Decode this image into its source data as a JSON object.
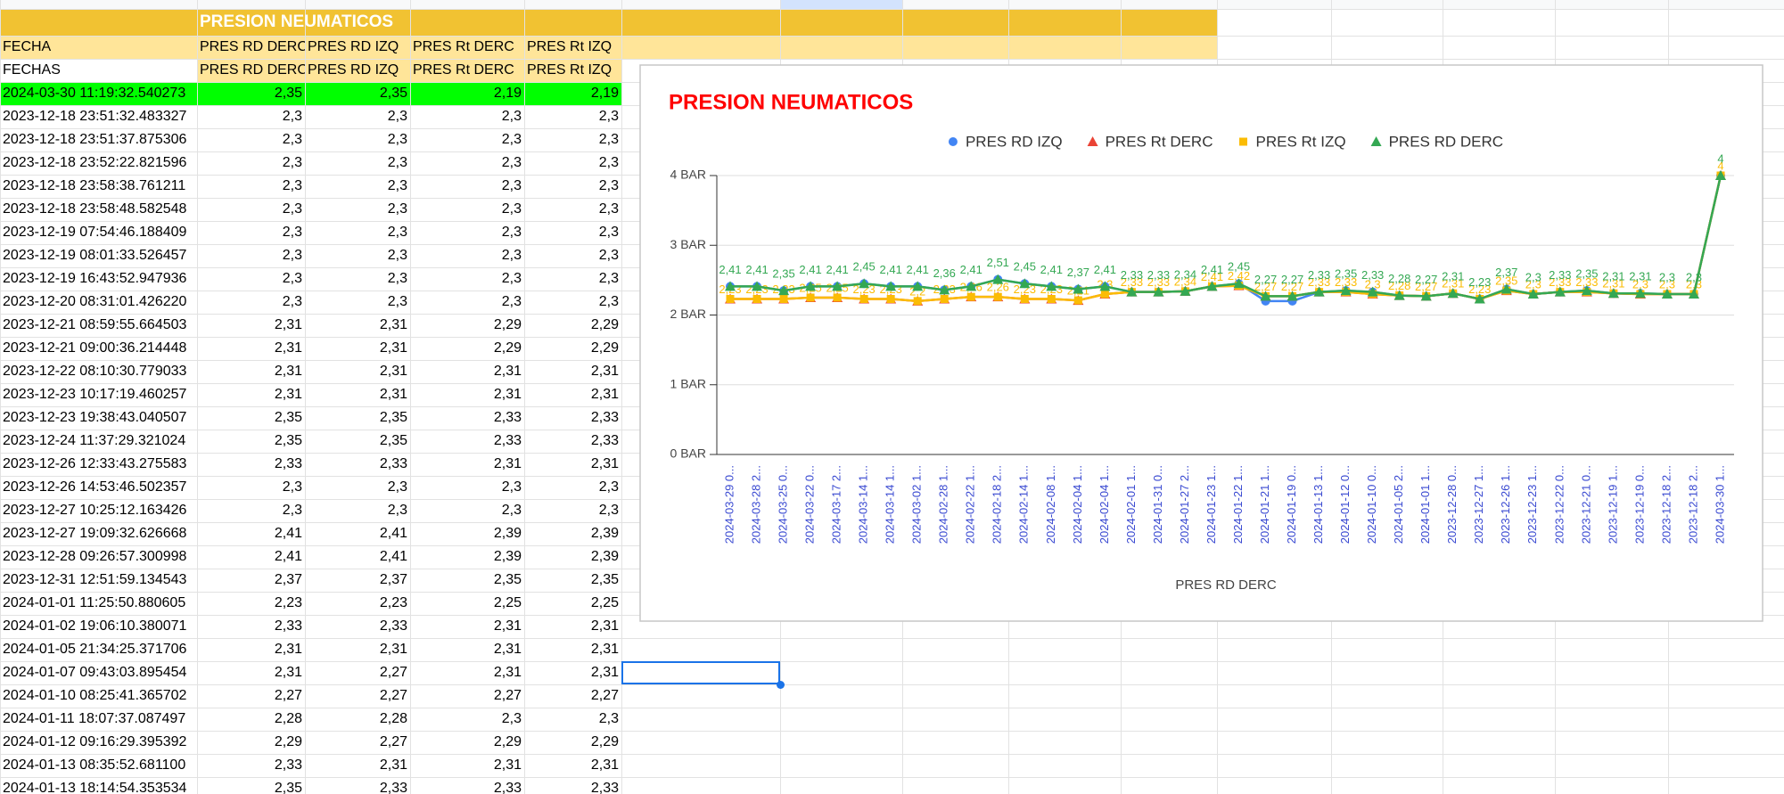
{
  "sheet": {
    "title": "PRESION NEUMATICOS",
    "header": [
      "FECHA",
      "PRES RD DERC",
      "PRES RD IZQ",
      "PRES Rt DERC",
      "PRES Rt IZQ"
    ],
    "subheader": [
      "FECHAS",
      "PRES RD DERC",
      "PRES RD IZQ",
      "PRES Rt DERC",
      "PRES Rt IZQ"
    ],
    "rows": [
      [
        "2024-03-30 11:19:32.540273",
        "2,35",
        "2,35",
        "2,19",
        "2,19"
      ],
      [
        "2023-12-18 23:51:32.483327",
        "2,3",
        "2,3",
        "2,3",
        "2,3"
      ],
      [
        "2023-12-18 23:51:37.875306",
        "2,3",
        "2,3",
        "2,3",
        "2,3"
      ],
      [
        "2023-12-18 23:52:22.821596",
        "2,3",
        "2,3",
        "2,3",
        "2,3"
      ],
      [
        "2023-12-18 23:58:38.761211",
        "2,3",
        "2,3",
        "2,3",
        "2,3"
      ],
      [
        "2023-12-18 23:58:48.582548",
        "2,3",
        "2,3",
        "2,3",
        "2,3"
      ],
      [
        "2023-12-19 07:54:46.188409",
        "2,3",
        "2,3",
        "2,3",
        "2,3"
      ],
      [
        "2023-12-19 08:01:33.526457",
        "2,3",
        "2,3",
        "2,3",
        "2,3"
      ],
      [
        "2023-12-19 16:43:52.947936",
        "2,3",
        "2,3",
        "2,3",
        "2,3"
      ],
      [
        "2023-12-20 08:31:01.426220",
        "2,3",
        "2,3",
        "2,3",
        "2,3"
      ],
      [
        "2023-12-21 08:59:55.664503",
        "2,31",
        "2,31",
        "2,29",
        "2,29"
      ],
      [
        "2023-12-21 09:00:36.214448",
        "2,31",
        "2,31",
        "2,29",
        "2,29"
      ],
      [
        "2023-12-22 08:10:30.779033",
        "2,31",
        "2,31",
        "2,31",
        "2,31"
      ],
      [
        "2023-12-23 10:17:19.460257",
        "2,31",
        "2,31",
        "2,31",
        "2,31"
      ],
      [
        "2023-12-23 19:38:43.040507",
        "2,35",
        "2,35",
        "2,33",
        "2,33"
      ],
      [
        "2023-12-24 11:37:29.321024",
        "2,35",
        "2,35",
        "2,33",
        "2,33"
      ],
      [
        "2023-12-26 12:33:43.275583",
        "2,33",
        "2,33",
        "2,31",
        "2,31"
      ],
      [
        "2023-12-26 14:53:46.502357",
        "2,3",
        "2,3",
        "2,3",
        "2,3"
      ],
      [
        "2023-12-27 10:25:12.163426",
        "2,3",
        "2,3",
        "2,3",
        "2,3"
      ],
      [
        "2023-12-27 19:09:32.626668",
        "2,41",
        "2,41",
        "2,39",
        "2,39"
      ],
      [
        "2023-12-28 09:26:57.300998",
        "2,41",
        "2,41",
        "2,39",
        "2,39"
      ],
      [
        "2023-12-31 12:51:59.134543",
        "2,37",
        "2,37",
        "2,35",
        "2,35"
      ],
      [
        "2024-01-01 11:25:50.880605",
        "2,23",
        "2,23",
        "2,25",
        "2,25"
      ],
      [
        "2024-01-02 19:06:10.380071",
        "2,33",
        "2,33",
        "2,31",
        "2,31"
      ],
      [
        "2024-01-05 21:34:25.371706",
        "2,31",
        "2,31",
        "2,31",
        "2,31"
      ],
      [
        "2024-01-07 09:43:03.895454",
        "2,31",
        "2,27",
        "2,31",
        "2,31"
      ],
      [
        "2024-01-10 08:25:41.365702",
        "2,27",
        "2,27",
        "2,27",
        "2,27"
      ],
      [
        "2024-01-11 18:07:37.087497",
        "2,28",
        "2,28",
        "2,3",
        "2,3"
      ],
      [
        "2024-01-12 09:16:29.395392",
        "2,29",
        "2,27",
        "2,29",
        "2,29"
      ],
      [
        "2024-01-13 08:35:52.681100",
        "2,33",
        "2,31",
        "2,31",
        "2,31"
      ],
      [
        "2024-01-13 18:14:54.353534",
        "2,35",
        "2,33",
        "2,33",
        "2,33"
      ]
    ]
  },
  "chart_data": {
    "type": "line",
    "title": "PRESION NEUMATICOS",
    "x_label": "PRES RD DERC",
    "legend": "top",
    "grid": true,
    "categories": [
      "2024-03-29 0...",
      "2024-03-28 2...",
      "2024-03-25 0...",
      "2024-03-22 0...",
      "2024-03-17 2...",
      "2024-03-14 1...",
      "2024-03-14 1...",
      "2024-03-02 1...",
      "2024-02-28 1...",
      "2024-02-22 1...",
      "2024-02-18 2...",
      "2024-02-14 1...",
      "2024-02-08 1...",
      "2024-02-04 1...",
      "2024-02-04 1...",
      "2024-02-01 1...",
      "2024-01-31 0...",
      "2024-01-27 2...",
      "2024-01-23 1...",
      "2024-01-22 1...",
      "2024-01-21 1...",
      "2024-01-19 0...",
      "2024-01-13 1...",
      "2024-01-12 0...",
      "2024-01-10 0...",
      "2024-01-05 2...",
      "2024-01-01 1...",
      "2023-12-28 0...",
      "2023-12-27 1...",
      "2023-12-26 1...",
      "2023-12-23 1...",
      "2023-12-22 0...",
      "2023-12-21 0...",
      "2023-12-19 1...",
      "2023-12-19 0...",
      "2023-12-18 2...",
      "2023-12-18 2...",
      "2024-03-30 1..."
    ],
    "ylim": [
      0,
      4
    ],
    "yticks": [
      {
        "value": 0,
        "label": "0 BAR"
      },
      {
        "value": 1,
        "label": "1 BAR"
      },
      {
        "value": 2,
        "label": "2 BAR"
      },
      {
        "value": 3,
        "label": "3 BAR"
      },
      {
        "value": 4,
        "label": "4 BAR"
      }
    ],
    "series": [
      {
        "name": "PRES RD IZQ",
        "color": "#4285f4",
        "marker": "circle",
        "values": [
          2.41,
          2.41,
          2.35,
          2.41,
          2.41,
          2.45,
          2.41,
          2.41,
          2.36,
          2.41,
          2.51,
          2.45,
          2.41,
          2.37,
          2.41,
          2.33,
          2.33,
          2.34,
          2.41,
          2.45,
          2.2,
          2.2,
          2.33,
          2.35,
          2.33,
          2.28,
          2.27,
          2.31,
          2.23,
          2.37,
          2.3,
          2.33,
          2.35,
          2.31,
          2.31,
          2.3,
          2.3,
          4
        ]
      },
      {
        "name": "PRES Rt DERC",
        "color": "#ea4335",
        "marker": "triangle",
        "values": [
          2.23,
          2.23,
          2.23,
          2.25,
          2.25,
          2.23,
          2.23,
          2.2,
          2.23,
          2.26,
          2.26,
          2.23,
          2.23,
          2.21,
          2.3,
          2.33,
          2.33,
          2.34,
          2.41,
          2.42,
          2.27,
          2.27,
          2.33,
          2.33,
          2.3,
          2.28,
          2.27,
          2.31,
          2.23,
          2.35,
          2.3,
          2.33,
          2.33,
          2.31,
          2.3,
          2.3,
          2.3,
          4
        ]
      },
      {
        "name": "PRES Rt IZQ",
        "color": "#fbbc04",
        "marker": "square",
        "values": [
          2.23,
          2.23,
          2.23,
          2.25,
          2.25,
          2.23,
          2.23,
          2.2,
          2.23,
          2.26,
          2.26,
          2.23,
          2.23,
          2.21,
          2.3,
          2.33,
          2.33,
          2.34,
          2.41,
          2.42,
          2.27,
          2.27,
          2.33,
          2.33,
          2.3,
          2.28,
          2.27,
          2.31,
          2.23,
          2.35,
          2.3,
          2.33,
          2.33,
          2.31,
          2.3,
          2.3,
          2.3,
          4
        ],
        "value_labels": [
          "2,23",
          "2,23",
          "2,23",
          "2,25",
          "2,25",
          "2,23",
          "2,23",
          "2,2",
          "2,23",
          "2,26",
          "2,26",
          "2,23",
          "2,23",
          "2,21",
          "2,3",
          "2,33",
          "2,33",
          "2,34",
          "2,41",
          "2,42",
          "2,27",
          "2,27",
          "2,33",
          "2,33",
          "2,3",
          "2,28",
          "2,27",
          "2,31",
          "2,23",
          "2,35",
          "2,3",
          "2,33",
          "2,33",
          "2,31",
          "2,3",
          "2,3",
          "2,3",
          "4"
        ]
      },
      {
        "name": "PRES RD DERC",
        "color": "#34a853",
        "marker": "triangle",
        "values": [
          2.41,
          2.41,
          2.35,
          2.41,
          2.41,
          2.45,
          2.41,
          2.41,
          2.36,
          2.41,
          2.51,
          2.45,
          2.41,
          2.37,
          2.41,
          2.33,
          2.33,
          2.34,
          2.41,
          2.45,
          2.27,
          2.27,
          2.33,
          2.35,
          2.33,
          2.28,
          2.27,
          2.31,
          2.23,
          2.37,
          2.3,
          2.33,
          2.35,
          2.31,
          2.31,
          2.3,
          2.3,
          4
        ],
        "value_labels": [
          "2,41",
          "2,41",
          "2,35",
          "2,41",
          "2,41",
          "2,45",
          "2,41",
          "2,41",
          "2,36",
          "2,41",
          "2,51",
          "2,45",
          "2,41",
          "2,37",
          "2,41",
          "2,33",
          "2,33",
          "2,34",
          "2,41",
          "2,45",
          "2,27",
          "2,27",
          "2,33",
          "2,35",
          "2,33",
          "2,28",
          "2,27",
          "2,31",
          "2,23",
          "2,37",
          "2,3",
          "2,33",
          "2,35",
          "2,31",
          "2,31",
          "2,3",
          "2,3",
          "4"
        ]
      }
    ]
  }
}
